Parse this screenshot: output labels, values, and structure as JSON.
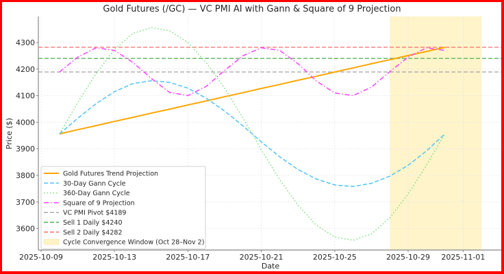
{
  "chart_data": {
    "type": "line",
    "title": "Gold Futures (/GC) — VC PMI AI with Gann & Square of 9 Projection",
    "xlabel": "Date",
    "ylabel": "Price ($)",
    "ylim": [
      3530,
      4390
    ],
    "xlim": [
      "2025-10-08T12:00",
      "2025-11-03T00:00"
    ],
    "grid": true,
    "legend_position": "lower left",
    "x_ticks": [
      "2025-10-09",
      "2025-10-13",
      "2025-10-17",
      "2025-10-21",
      "2025-10-25",
      "2025-10-29",
      "2025-11-01"
    ],
    "y_ticks": [
      3600,
      3700,
      3800,
      3900,
      4000,
      4100,
      4200,
      4300
    ],
    "x": [
      "2025-10-10",
      "2025-10-11",
      "2025-10-12",
      "2025-10-13",
      "2025-10-14",
      "2025-10-15",
      "2025-10-16",
      "2025-10-17",
      "2025-10-18",
      "2025-10-19",
      "2025-10-20",
      "2025-10-21",
      "2025-10-22",
      "2025-10-23",
      "2025-10-24",
      "2025-10-25",
      "2025-10-26",
      "2025-10-27",
      "2025-10-28",
      "2025-10-29",
      "2025-10-30",
      "2025-10-31"
    ],
    "series": [
      {
        "name": "Gold Futures Trend Projection",
        "color": "#ffa500",
        "style": "solid",
        "values": [
          3956,
          3972,
          3987,
          4003,
          4018,
          4034,
          4049,
          4065,
          4080,
          4096,
          4111,
          4127,
          4142,
          4158,
          4173,
          4189,
          4204,
          4220,
          4235,
          4251,
          4266,
          4282
        ]
      },
      {
        "name": "30-Day Gann Cycle",
        "color": "#4fc3f7",
        "style": "dashed",
        "values": [
          3956,
          4015,
          4070,
          4115,
          4145,
          4156,
          4150,
          4128,
          4090,
          4042,
          3986,
          3926,
          3870,
          3822,
          3786,
          3764,
          3758,
          3770,
          3797,
          3838,
          3892,
          3956
        ]
      },
      {
        "name": "360-Day Gann Cycle",
        "color": "#77dd77",
        "style": "dotted",
        "values": [
          3956,
          4074,
          4184,
          4274,
          4334,
          4356,
          4344,
          4300,
          4224,
          4128,
          4016,
          3896,
          3784,
          3688,
          3612,
          3568,
          3556,
          3580,
          3640,
          3730,
          3838,
          3956
        ]
      },
      {
        "name": "Square of 9 Projection",
        "color": "#ff40ff",
        "style": "dashdot",
        "values": [
          4189,
          4245,
          4280,
          4270,
          4225,
          4165,
          4112,
          4100,
          4135,
          4195,
          4250,
          4280,
          4270,
          4220,
          4155,
          4110,
          4100,
          4132,
          4190,
          4245,
          4280,
          4270
        ]
      }
    ],
    "hlines": [
      {
        "name": "VC PMI Pivot $4189",
        "value": 4189,
        "color": "#aaaaaa",
        "style": "dashed"
      },
      {
        "name": "Sell 1 Daily $4240",
        "value": 4240,
        "color": "#4caf50",
        "style": "dashed"
      },
      {
        "name": "Sell 2 Daily $4282",
        "value": 4282,
        "color": "#ff6b6b",
        "style": "dashed"
      }
    ],
    "spans": [
      {
        "name": "Cycle Convergence Window (Oct 28–Nov 2)",
        "start": "2025-10-28",
        "end": "2025-11-02",
        "color": "#fff3c4"
      }
    ]
  }
}
